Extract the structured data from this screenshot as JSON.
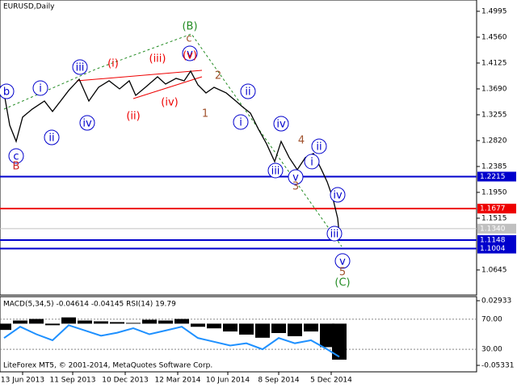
{
  "chart_data": [
    {
      "type": "line",
      "title": "EURUSD,Daily",
      "color": "#000000",
      "x": [
        5,
        12,
        20,
        28,
        40,
        55,
        65,
        75,
        85,
        98,
        110,
        122,
        135,
        148,
        160,
        168,
        180,
        195,
        205,
        218,
        228,
        236,
        245,
        255,
        265,
        280,
        292,
        300,
        310,
        320,
        330,
        340,
        348,
        358,
        368,
        378,
        388,
        398,
        405,
        412,
        418,
        420
      ],
      "values": [
        1.3622,
        1.3079,
        1.2807,
        1.3215,
        1.3351,
        1.3486,
        1.331,
        1.3486,
        1.3663,
        1.3853,
        1.3486,
        1.3717,
        1.3826,
        1.369,
        1.3826,
        1.3581,
        1.3717,
        1.3894,
        1.3772,
        1.3867,
        1.3826,
        1.3989,
        1.3758,
        1.3622,
        1.3717,
        1.3622,
        1.3486,
        1.3391,
        1.3283,
        1.3011,
        1.2766,
        1.2467,
        1.2807,
        1.2535,
        1.2331,
        1.2535,
        1.2603,
        1.2331,
        1.2127,
        1.1855,
        1.1515,
        1.1244
      ],
      "xlim": [
        0,
        590
      ],
      "ylim": [
        1.0223,
        1.5185
      ],
      "xticks": [
        {
          "value": 28,
          "label": "13 Jun 2013"
        },
        {
          "value": 90,
          "label": "11 Sep 2013"
        },
        {
          "value": 155,
          "label": "10 Dec 2013"
        },
        {
          "value": 220,
          "label": "12 Mar 2014"
        },
        {
          "value": 282,
          "label": "10 Jun 2014"
        },
        {
          "value": 345,
          "label": "8 Sep 2014"
        },
        {
          "value": 410,
          "label": "5 Dec 2014"
        }
      ],
      "yticks": [
        1.4995,
        {
          "value": 1.456,
          "label": "1.4560"
        },
        1.4125,
        {
          "value": 1.369,
          "label": "1.3690"
        },
        1.3255,
        {
          "value": 1.282,
          "label": "1.2820"
        },
        1.2385,
        {
          "value": 1.195,
          "label": "1.1950"
        },
        1.1515,
        1.0645
      ],
      "levels": [
        {
          "value": 1.2215,
          "color": "#0000cc"
        },
        {
          "value": 1.1677,
          "color": "#ee0000"
        },
        {
          "value": 1.134,
          "label": "1.1340",
          "color": "#c0c0c0"
        },
        {
          "value": 1.1148,
          "color": "#0000cc"
        },
        {
          "value": 1.1004,
          "color": "#0000cc"
        }
      ],
      "annotations": [
        {
          "text": "b",
          "x": 8,
          "y": 1.3649,
          "color": "#0000cc",
          "circled": true
        },
        {
          "text": "c",
          "x": 20,
          "y": 1.2562,
          "color": "#0000cc",
          "circled": true
        },
        {
          "text": "B",
          "x": 20,
          "y": 1.2399,
          "color": "#cc2222",
          "circled": false
        },
        {
          "text": "i",
          "x": 50,
          "y": 1.3704,
          "color": "#0000cc",
          "circled": true
        },
        {
          "text": "ii",
          "x": 64,
          "y": 1.2874,
          "color": "#0000cc",
          "circled": true
        },
        {
          "text": "iii",
          "x": 99,
          "y": 1.4057,
          "color": "#0000cc",
          "circled": true
        },
        {
          "text": "iv",
          "x": 108,
          "y": 1.3119,
          "color": "#0000cc",
          "circled": true
        },
        {
          "text": "(i)",
          "x": 140,
          "y": 1.4125,
          "color": "#ee0000",
          "circled": false
        },
        {
          "text": "(ii)",
          "x": 165,
          "y": 1.3241,
          "color": "#ee0000",
          "circled": false
        },
        {
          "text": "(iii)",
          "x": 195,
          "y": 1.4207,
          "color": "#ee0000",
          "circled": false
        },
        {
          "text": "(iv)",
          "x": 210,
          "y": 1.3473,
          "color": "#ee0000",
          "circled": false
        },
        {
          "text": "v",
          "x": 235,
          "y": 1.4288,
          "color": "#0000cc",
          "circled": true
        },
        {
          "text": "(v)",
          "x": 235,
          "y": 1.4261,
          "color": "#ee0000",
          "circled": false
        },
        {
          "text": "c",
          "x": 234,
          "y": 1.4546,
          "color": "#a0522d",
          "circled": false
        },
        {
          "text": "(B)",
          "x": 235,
          "y": 1.475,
          "color": "#228b22",
          "circled": false
        },
        {
          "text": "2",
          "x": 270,
          "y": 1.3921,
          "color": "#a0522d",
          "circled": false
        },
        {
          "text": "1",
          "x": 254,
          "y": 1.3282,
          "color": "#a0522d",
          "circled": false
        },
        {
          "text": "ii",
          "x": 307,
          "y": 1.3649,
          "color": "#0000cc",
          "circled": true
        },
        {
          "text": "i",
          "x": 298,
          "y": 1.3133,
          "color": "#0000cc",
          "circled": true
        },
        {
          "text": "iv",
          "x": 348,
          "y": 1.3105,
          "color": "#0000cc",
          "circled": true
        },
        {
          "text": "4",
          "x": 373,
          "y": 1.2834,
          "color": "#a0522d",
          "circled": false
        },
        {
          "text": "ii",
          "x": 395,
          "y": 1.2725,
          "color": "#0000cc",
          "circled": true
        },
        {
          "text": "iii",
          "x": 341,
          "y": 1.2317,
          "color": "#0000cc",
          "circled": true
        },
        {
          "text": "v",
          "x": 366,
          "y": 1.2208,
          "color": "#0000cc",
          "circled": true
        },
        {
          "text": "3",
          "x": 366,
          "y": 1.2059,
          "color": "#a0522d",
          "circled": false
        },
        {
          "text": "i",
          "x": 386,
          "y": 1.2467,
          "color": "#0000cc",
          "circled": true
        },
        {
          "text": "iv",
          "x": 418,
          "y": 1.1909,
          "color": "#0000cc",
          "circled": true
        },
        {
          "text": "iii",
          "x": 414,
          "y": 1.1257,
          "color": "#0000cc",
          "circled": true
        },
        {
          "text": "v",
          "x": 424,
          "y": 1.0795,
          "color": "#0000cc",
          "circled": true
        },
        {
          "text": "5",
          "x": 424,
          "y": 1.0618,
          "color": "#a0522d",
          "circled": false
        },
        {
          "text": "(C)",
          "x": 424,
          "y": 1.0441,
          "color": "#228b22",
          "circled": false
        }
      ]
    },
    {
      "type": "indicator",
      "label": "MACD(5,34,5) -0.04614 -0.04145 RSI(14) 19.79",
      "credit": "LiteForex MT5, © 2001-2014, MetaQuotes Software Corp.",
      "x": [
        5,
        25,
        45,
        65,
        85,
        105,
        125,
        145,
        165,
        185,
        205,
        225,
        245,
        265,
        285,
        305,
        325,
        345,
        365,
        385,
        405,
        420
      ],
      "series": [
        {
          "name": "MACD(5,34,5)",
          "color": "#000000",
          "values": [
            -0.008,
            0.004,
            0.006,
            -0.002,
            0.008,
            0.004,
            0.003,
            0.002,
            0.001,
            0.005,
            0.004,
            0.006,
            -0.004,
            -0.006,
            -0.01,
            -0.014,
            -0.018,
            -0.012,
            -0.016,
            -0.01,
            -0.03,
            -0.046
          ]
        },
        {
          "name": "RSI(14)",
          "color": "#1e90ff",
          "axis": "y2",
          "values": [
            45,
            60,
            50,
            42,
            62,
            55,
            48,
            52,
            58,
            50,
            55,
            60,
            45,
            40,
            35,
            38,
            30,
            45,
            38,
            42,
            30,
            20
          ]
        }
      ],
      "ylim": [
        -0.06157,
        0.0345
      ],
      "yticks": [
        0.02933,
        -0.05331
      ],
      "y2lim": [
        0,
        100
      ],
      "y2ticks": [
        {
          "value": 70,
          "label": "70.00"
        },
        {
          "value": 30,
          "label": "30.00"
        }
      ]
    }
  ]
}
